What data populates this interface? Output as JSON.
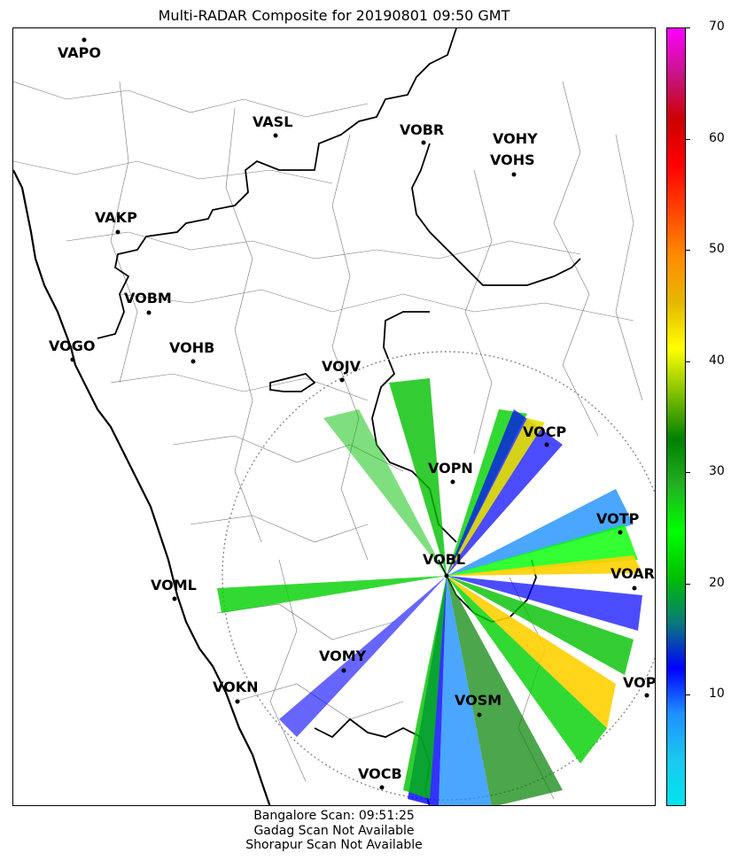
{
  "title": "Multi-RADAR Composite for 20190801 09:50 GMT",
  "stations": [
    {
      "code": "VAPO"
    },
    {
      "code": "VASL"
    },
    {
      "code": "VOBR"
    },
    {
      "code": "VOHY"
    },
    {
      "code": "VOHS"
    },
    {
      "code": "VAKP"
    },
    {
      "code": "VOBM"
    },
    {
      "code": "VOGO"
    },
    {
      "code": "VOHB"
    },
    {
      "code": "VOJV"
    },
    {
      "code": "VOCP"
    },
    {
      "code": "VOPN"
    },
    {
      "code": "VOTP"
    },
    {
      "code": "VOBL"
    },
    {
      "code": "VOAR"
    },
    {
      "code": "VOML"
    },
    {
      "code": "VOMY"
    },
    {
      "code": "VOKN"
    },
    {
      "code": "VOPC"
    },
    {
      "code": "VOSM"
    },
    {
      "code": "VOCB"
    }
  ],
  "colorbar": {
    "min": 0,
    "max": 70,
    "ticks": [
      "10",
      "20",
      "30",
      "40",
      "50",
      "60",
      "70"
    ],
    "colors": [
      "#00e5ee",
      "#1ac8f0",
      "#1e90ff",
      "#0000ff",
      "#0a7a7a",
      "#00c000",
      "#00ff00",
      "#22b022",
      "#008000",
      "#7fbf00",
      "#ffff00",
      "#e5b800",
      "#ff8c00",
      "#ff4500",
      "#ff0000",
      "#cc0000",
      "#c71585",
      "#ff00ff"
    ]
  },
  "footer": {
    "line1": "Bangalore Scan: 09:51:25",
    "line2": "Gadag Scan Not Available",
    "line3": "Shorapur Scan Not Available"
  }
}
